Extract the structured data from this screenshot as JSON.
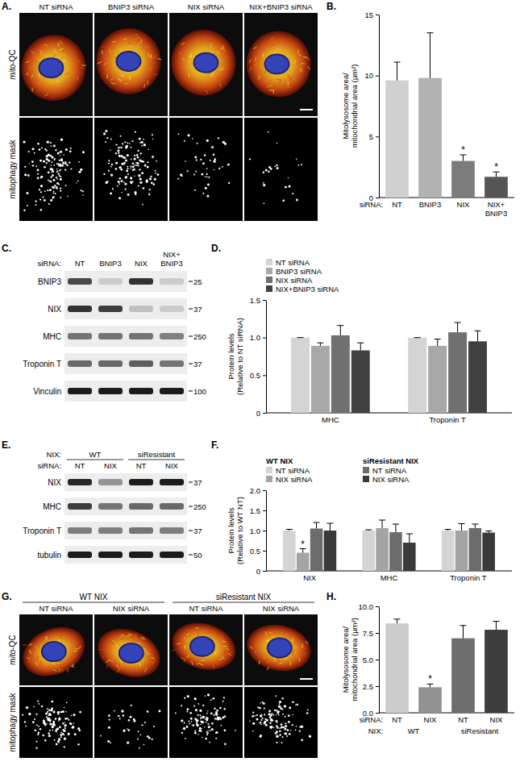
{
  "chart_data": [
    {
      "type": "bar",
      "label": "B.",
      "y_label": [
        "Mitolysosome area/",
        "mitochondrial area (µm²)"
      ],
      "x_label": "siRNA:",
      "categories": [
        "NT",
        "BNIP3",
        "NIX",
        "NIX+BNIP3"
      ],
      "values": [
        9.6,
        9.8,
        3.0,
        1.7
      ],
      "errors": [
        1.5,
        3.7,
        0.5,
        0.4
      ],
      "significance": [
        null,
        null,
        "*",
        "*"
      ],
      "colors": [
        "#d0d0d0",
        "#b2b2b2",
        "#7c7c7c",
        "#555555"
      ],
      "ylim": [
        0,
        15
      ],
      "yticks": [
        0,
        5,
        10,
        15
      ]
    },
    {
      "type": "bar",
      "label": "D.",
      "y_label": [
        "Protein levels",
        "(Relative to NT siRNA)"
      ],
      "categories": [
        "MHC",
        "Troponin T"
      ],
      "series": [
        {
          "name": "NT siRNA",
          "color": "#d4d4d4",
          "values": [
            1.0,
            1.0
          ],
          "errors": [
            0,
            0
          ]
        },
        {
          "name": "BNIP3 siRNA",
          "color": "#a8a8a8",
          "values": [
            0.89,
            0.89
          ],
          "errors": [
            0.04,
            0.09
          ]
        },
        {
          "name": "NIX siRNA",
          "color": "#707070",
          "values": [
            1.03,
            1.07
          ],
          "errors": [
            0.13,
            0.13
          ]
        },
        {
          "name": "NIX+BNIP3 siRNA",
          "color": "#404040",
          "values": [
            0.83,
            0.95
          ],
          "errors": [
            0.1,
            0.14
          ]
        }
      ],
      "ylim": [
        0,
        1.5
      ],
      "yticks": [
        0,
        0.5,
        {
          "value": 1,
          "label": "1.0"
        },
        1.5
      ],
      "legend": "top"
    },
    {
      "type": "bar",
      "label": "F.",
      "y_label": [
        "Protein levels",
        "(Relative to WT NT)"
      ],
      "categories": [
        "NIX",
        "MHC",
        "Troponin T"
      ],
      "series": [
        {
          "name": "NT siRNA",
          "group": "WT NIX",
          "color": "#d4d4d4",
          "values": [
            1.0,
            1.0,
            1.0
          ],
          "errors": [
            0.03,
            0.02,
            0.03
          ]
        },
        {
          "name": "NIX siRNA",
          "group": "WT NIX",
          "color": "#a4a4a4",
          "values": [
            0.45,
            1.06,
            1.0
          ],
          "errors": [
            0.1,
            0.2,
            0.17
          ],
          "significance": [
            "*",
            null,
            null
          ]
        },
        {
          "name": "NT siRNA",
          "group": "siResistant NIX",
          "color": "#6c6c6c",
          "values": [
            1.05,
            0.96,
            1.06
          ],
          "errors": [
            0.15,
            0.2,
            0.1
          ]
        },
        {
          "name": "NIX siRNA",
          "group": "siResistant NIX",
          "color": "#3a3a3a",
          "values": [
            1.0,
            0.7,
            0.95
          ],
          "errors": [
            0.18,
            0.22,
            0.04
          ]
        }
      ],
      "ylim": [
        0,
        2
      ],
      "yticks": [
        0,
        0.5,
        {
          "value": 1,
          "label": "1.0"
        },
        1.5,
        {
          "value": 2,
          "label": "2.0"
        }
      ],
      "legend": "top"
    },
    {
      "type": "bar",
      "label": "H.",
      "y_label": [
        "Mitolysosome area/",
        "mitochondrial area (µm²)"
      ],
      "x_label": "siRNA:",
      "group_label": "NIX:",
      "categories": [
        "NT",
        "NIX",
        "NT",
        "NIX"
      ],
      "category_groups": [
        "WT",
        "WT",
        "siResistant",
        "siResistant"
      ],
      "values": [
        8.4,
        2.4,
        7.0,
        7.8
      ],
      "errors": [
        0.4,
        0.3,
        1.2,
        0.8
      ],
      "significance": [
        null,
        "*",
        null,
        null
      ],
      "colors": [
        "#cccccc",
        "#929292",
        "#6e6e6e",
        "#3e3e3e"
      ],
      "ylim": [
        0,
        10
      ],
      "yticks": [
        {
          "value": 0,
          "label": "0.0"
        },
        2.5,
        {
          "value": 5,
          "label": "5.0"
        },
        7.5,
        {
          "value": 10,
          "label": "10.0"
        }
      ]
    }
  ],
  "images": [
    {
      "label": "A.",
      "columns": [
        "NT siRNA",
        "BNIP3 siRNA",
        "NIX siRNA",
        "NIX+BNIP3 siRNA"
      ],
      "rows": [
        "mito-QC",
        "mitophagy mask"
      ]
    },
    {
      "label": "G.",
      "column_groups": [
        "WT NIX",
        "WT NIX",
        "siResistant NIX",
        "siResistant NIX"
      ],
      "columns": [
        "NT siRNA",
        "NIX siRNA",
        "NT siRNA",
        "NIX siRNA"
      ],
      "rows": [
        "mito-QC",
        "mitophagy mask"
      ]
    }
  ],
  "blots": [
    {
      "label": "C.",
      "lane_label": "siRNA:",
      "lanes": [
        "NT",
        "BNIP3",
        "NIX",
        "NIX+BNIP3"
      ],
      "rows": [
        {
          "name": "BNIP3",
          "mw": 25,
          "intensity": [
            0.75,
            0.15,
            0.85,
            0.15
          ]
        },
        {
          "name": "NIX",
          "mw": 37,
          "intensity": [
            0.85,
            0.8,
            0.2,
            0.15
          ]
        },
        {
          "name": "MHC",
          "mw": 250,
          "intensity": [
            0.55,
            0.55,
            0.55,
            0.5
          ]
        },
        {
          "name": "Troponin T",
          "mw": 37,
          "intensity": [
            0.6,
            0.6,
            0.65,
            0.55
          ]
        },
        {
          "name": "Vinculin",
          "mw": 100,
          "intensity": [
            0.95,
            0.95,
            0.95,
            0.95
          ]
        }
      ]
    },
    {
      "label": "E.",
      "group_label": "NIX:",
      "lane_groups": [
        "WT",
        "WT",
        "siResistant",
        "siResistant"
      ],
      "lane_label": "siRNA:",
      "lanes": [
        "NT",
        "NIX",
        "NT",
        "NIX"
      ],
      "rows": [
        {
          "name": "NIX",
          "mw": 37,
          "intensity": [
            0.9,
            0.4,
            0.95,
            0.95
          ]
        },
        {
          "name": "MHC",
          "mw": 250,
          "intensity": [
            0.8,
            0.55,
            0.6,
            0.6
          ]
        },
        {
          "name": "Troponin T",
          "mw": 37,
          "intensity": [
            0.5,
            0.5,
            0.55,
            0.5
          ]
        },
        {
          "name": "tubulin",
          "mw": 50,
          "intensity": [
            0.95,
            0.95,
            0.95,
            0.95
          ]
        }
      ]
    }
  ]
}
